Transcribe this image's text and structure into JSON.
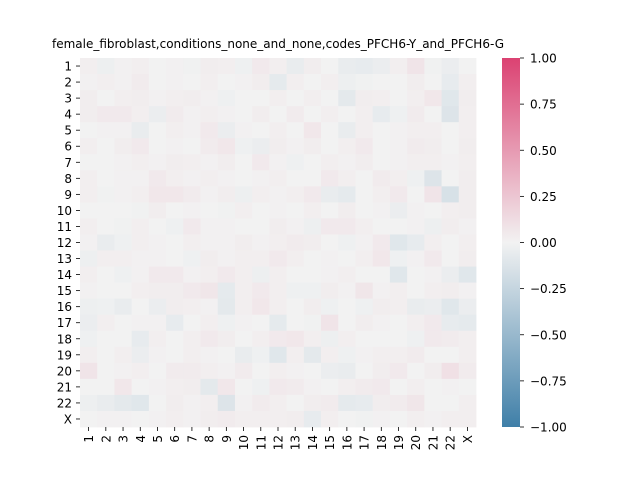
{
  "chart_data": {
    "type": "heatmap",
    "title": "female_fibroblast,conditions_none_and_none,codes_PFCH6-Y_and_PFCH6-G",
    "xlabel": "",
    "ylabel": "",
    "row_labels": [
      "1",
      "2",
      "3",
      "4",
      "5",
      "6",
      "7",
      "8",
      "9",
      "10",
      "11",
      "12",
      "13",
      "14",
      "15",
      "16",
      "17",
      "18",
      "19",
      "20",
      "21",
      "22",
      "X"
    ],
    "col_labels": [
      "1",
      "2",
      "3",
      "4",
      "5",
      "6",
      "7",
      "8",
      "9",
      "10",
      "11",
      "12",
      "13",
      "14",
      "15",
      "16",
      "17",
      "18",
      "19",
      "20",
      "21",
      "22",
      "X"
    ],
    "colorbar": {
      "vmin": -1.0,
      "vmax": 1.0,
      "ticks": [
        "1.00",
        "0.75",
        "0.50",
        "0.25",
        "0.00",
        "−0.25",
        "−0.50",
        "−0.75",
        "−1.00"
      ],
      "low_color": "#3f7fa8",
      "mid_color": "#f2f2f2",
      "high_color": "#db4272"
    },
    "values": [
      [
        0.02,
        -0.03,
        0.01,
        0.02,
        0.0,
        0.01,
        -0.01,
        0.03,
        0.02,
        -0.02,
        0.05,
        0.02,
        -0.05,
        0.03,
        0.0,
        -0.05,
        -0.06,
        -0.04,
        0.02,
        0.08,
        -0.01,
        -0.04,
        0.0
      ],
      [
        0.01,
        0.02,
        0.01,
        0.04,
        0.0,
        0.01,
        0.0,
        0.02,
        0.0,
        0.01,
        0.03,
        -0.07,
        0.02,
        0.0,
        0.02,
        -0.03,
        -0.01,
        0.0,
        0.0,
        0.03,
        0.0,
        -0.06,
        0.02
      ],
      [
        0.03,
        0.0,
        0.02,
        0.03,
        0.01,
        0.02,
        0.03,
        0.01,
        -0.02,
        0.0,
        0.0,
        0.02,
        0.0,
        0.02,
        0.0,
        -0.08,
        0.03,
        0.02,
        0.0,
        0.02,
        0.06,
        -0.1,
        0.03
      ],
      [
        0.03,
        0.05,
        0.05,
        0.02,
        -0.04,
        0.04,
        0.01,
        0.02,
        0.01,
        0.0,
        0.03,
        0.0,
        0.04,
        0.0,
        0.02,
        0.0,
        0.02,
        -0.06,
        -0.02,
        0.04,
        0.0,
        -0.12,
        0.02
      ],
      [
        0.0,
        0.01,
        0.01,
        -0.05,
        0.0,
        0.02,
        0.01,
        0.05,
        -0.04,
        0.01,
        0.0,
        0.02,
        0.0,
        0.06,
        0.0,
        -0.05,
        0.02,
        0.0,
        0.01,
        0.02,
        0.02,
        0.0,
        0.02
      ],
      [
        0.02,
        0.0,
        0.03,
        0.05,
        0.0,
        0.01,
        0.0,
        0.04,
        0.06,
        -0.02,
        -0.04,
        0.03,
        0.01,
        0.03,
        0.0,
        0.02,
        0.05,
        0.0,
        0.01,
        0.04,
        0.03,
        0.0,
        0.03
      ],
      [
        0.0,
        0.0,
        0.01,
        0.02,
        0.01,
        0.03,
        0.02,
        0.01,
        0.03,
        0.0,
        0.05,
        0.01,
        -0.02,
        0.0,
        0.02,
        0.01,
        0.03,
        0.0,
        0.01,
        0.02,
        0.02,
        0.01,
        0.02
      ],
      [
        0.02,
        0.0,
        0.01,
        0.01,
        0.05,
        0.02,
        0.01,
        0.02,
        0.01,
        0.0,
        0.01,
        0.02,
        0.0,
        0.0,
        0.05,
        0.02,
        0.0,
        0.04,
        0.02,
        -0.02,
        -0.12,
        0.0,
        0.03
      ],
      [
        0.02,
        -0.01,
        0.01,
        0.02,
        0.06,
        0.06,
        0.04,
        0.01,
        0.03,
        -0.03,
        0.02,
        0.01,
        0.02,
        0.05,
        -0.05,
        -0.07,
        0.0,
        0.02,
        0.05,
        0.0,
        0.08,
        -0.15,
        0.03
      ],
      [
        0.0,
        0.0,
        0.0,
        -0.01,
        0.03,
        0.0,
        0.01,
        0.0,
        -0.01,
        0.02,
        0.0,
        0.01,
        0.0,
        0.02,
        0.0,
        0.03,
        0.0,
        0.01,
        -0.04,
        0.01,
        0.0,
        0.02,
        0.03
      ],
      [
        0.02,
        0.0,
        -0.01,
        0.02,
        0.0,
        -0.02,
        0.05,
        0.01,
        0.01,
        0.0,
        0.0,
        0.03,
        0.01,
        -0.03,
        0.05,
        0.05,
        0.02,
        0.0,
        0.0,
        0.01,
        -0.03,
        0.03,
        0.01
      ],
      [
        0.01,
        -0.05,
        -0.02,
        0.02,
        0.01,
        0.0,
        0.02,
        0.01,
        0.01,
        0.03,
        0.01,
        0.02,
        0.04,
        0.03,
        0.0,
        -0.02,
        0.01,
        0.05,
        -0.1,
        -0.06,
        0.02,
        0.0,
        0.02
      ],
      [
        -0.03,
        0.02,
        0.02,
        0.01,
        0.01,
        0.0,
        -0.02,
        0.03,
        0.01,
        0.02,
        0.02,
        0.05,
        0.02,
        0.0,
        0.01,
        0.0,
        0.02,
        0.06,
        -0.02,
        0.01,
        0.05,
        0.0,
        0.03
      ],
      [
        0.02,
        0.0,
        -0.02,
        0.01,
        0.05,
        0.05,
        0.01,
        0.02,
        0.05,
        0.02,
        -0.03,
        0.02,
        0.0,
        0.0,
        0.01,
        0.02,
        0.0,
        0.0,
        -0.1,
        0.0,
        0.01,
        -0.04,
        -0.1
      ],
      [
        0.01,
        0.0,
        0.0,
        0.02,
        0.03,
        0.03,
        0.05,
        0.07,
        -0.07,
        0.02,
        0.05,
        0.02,
        -0.02,
        -0.02,
        0.03,
        0.01,
        0.07,
        0.01,
        0.02,
        0.0,
        0.02,
        0.03,
        0.01
      ],
      [
        -0.03,
        -0.02,
        -0.05,
        0.0,
        -0.04,
        0.03,
        0.02,
        0.01,
        -0.08,
        0.02,
        0.06,
        0.02,
        0.0,
        0.03,
        -0.02,
        0.0,
        -0.02,
        0.03,
        0.02,
        -0.05,
        -0.04,
        -0.1,
        -0.04
      ],
      [
        -0.04,
        0.02,
        0.0,
        0.01,
        0.01,
        -0.06,
        0.0,
        0.02,
        -0.02,
        0.01,
        0.0,
        -0.07,
        0.0,
        -0.01,
        0.08,
        0.0,
        0.03,
        0.01,
        0.0,
        0.02,
        0.05,
        -0.06,
        -0.07
      ],
      [
        -0.02,
        0.0,
        0.0,
        -0.06,
        0.02,
        0.0,
        0.02,
        0.05,
        0.03,
        0.0,
        0.02,
        0.05,
        0.06,
        0.02,
        -0.03,
        0.02,
        0.0,
        0.0,
        0.0,
        -0.02,
        0.05,
        0.04,
        0.02
      ],
      [
        0.02,
        0.0,
        0.02,
        -0.04,
        0.01,
        0.0,
        0.02,
        0.01,
        0.0,
        -0.05,
        -0.02,
        -0.1,
        0.02,
        -0.08,
        0.02,
        -0.02,
        0.01,
        0.02,
        0.02,
        0.04,
        0.0,
        0.0,
        0.02
      ],
      [
        0.08,
        0.0,
        0.01,
        0.02,
        0.0,
        0.04,
        0.04,
        0.02,
        0.01,
        0.04,
        0.0,
        0.02,
        0.01,
        0.0,
        -0.04,
        -0.05,
        0.0,
        0.03,
        0.05,
        0.0,
        0.03,
        0.1,
        0.04
      ],
      [
        0.0,
        0.0,
        0.06,
        0.0,
        0.01,
        0.02,
        0.03,
        -0.08,
        0.06,
        0.0,
        -0.02,
        0.05,
        0.04,
        0.01,
        0.0,
        0.02,
        0.04,
        0.05,
        0.0,
        0.02,
        0.0,
        0.01,
        0.0
      ],
      [
        -0.03,
        -0.05,
        -0.08,
        -0.1,
        0.0,
        0.03,
        0.01,
        0.02,
        -0.12,
        0.01,
        0.04,
        0.02,
        0.0,
        0.03,
        0.04,
        -0.07,
        -0.06,
        0.03,
        0.04,
        0.07,
        0.0,
        0.0,
        0.02
      ],
      [
        0.0,
        0.01,
        0.01,
        0.0,
        0.01,
        0.02,
        0.01,
        0.03,
        0.04,
        0.02,
        0.02,
        0.02,
        0.03,
        -0.06,
        0.02,
        0.0,
        -0.01,
        0.01,
        0.0,
        0.02,
        0.01,
        0.02,
        0.02
      ]
    ]
  }
}
